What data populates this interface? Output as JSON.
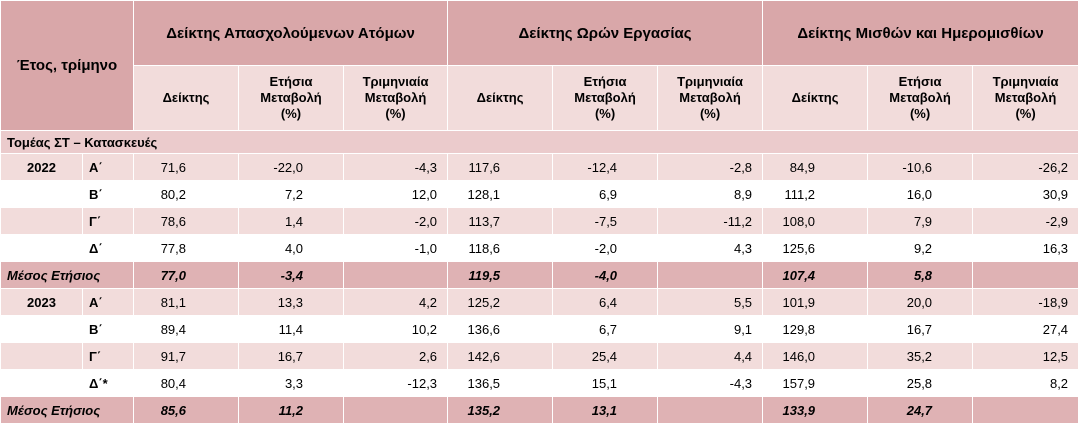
{
  "header": {
    "year_quarter": "Έτος, τρίμηνο",
    "groups": [
      "Δείκτης Απασχολούμενων Ατόμων",
      "Δείκτης Ωρών Εργασίας",
      "Δείκτης Μισθών και Ημερομισθίων"
    ],
    "subheaders": [
      "Δείκτης",
      "Ετήσια Μεταβολή (%)",
      "Τριμηνιαία Μεταβολή (%)"
    ]
  },
  "sector": "Τομέας ΣΤ – Κατασκευές",
  "blocks": [
    {
      "year": "2022",
      "rows": [
        {
          "quarter": "Α΄",
          "values": [
            [
              "71,6",
              "-22,0",
              "-4,3"
            ],
            [
              "117,6",
              "-12,4",
              "-2,8"
            ],
            [
              "84,9",
              "-10,6",
              "-26,2"
            ]
          ]
        },
        {
          "quarter": "Β΄",
          "values": [
            [
              "80,2",
              "7,2",
              "12,0"
            ],
            [
              "128,1",
              "6,9",
              "8,9"
            ],
            [
              "111,2",
              "16,0",
              "30,9"
            ]
          ]
        },
        {
          "quarter": "Γ΄",
          "values": [
            [
              "78,6",
              "1,4",
              "-2,0"
            ],
            [
              "113,7",
              "-7,5",
              "-11,2"
            ],
            [
              "108,0",
              "7,9",
              "-2,9"
            ]
          ]
        },
        {
          "quarter": "Δ΄",
          "values": [
            [
              "77,8",
              "4,0",
              "-1,0"
            ],
            [
              "118,6",
              "-2,0",
              "4,3"
            ],
            [
              "125,6",
              "9,2",
              "16,3"
            ]
          ]
        }
      ],
      "mean": {
        "label": "Μέσος Ετήσιος",
        "values": [
          [
            "77,0",
            "-3,4"
          ],
          [
            "119,5",
            "-4,0"
          ],
          [
            "107,4",
            "5,8"
          ]
        ]
      }
    },
    {
      "year": "2023",
      "rows": [
        {
          "quarter": "Α΄",
          "values": [
            [
              "81,1",
              "13,3",
              "4,2"
            ],
            [
              "125,2",
              "6,4",
              "5,5"
            ],
            [
              "101,9",
              "20,0",
              "-18,9"
            ]
          ]
        },
        {
          "quarter": "Β΄",
          "values": [
            [
              "89,4",
              "11,4",
              "10,2"
            ],
            [
              "136,6",
              "6,7",
              "9,1"
            ],
            [
              "129,8",
              "16,7",
              "27,4"
            ]
          ]
        },
        {
          "quarter": "Γ΄",
          "values": [
            [
              "91,7",
              "16,7",
              "2,6"
            ],
            [
              "142,6",
              "25,4",
              "4,4"
            ],
            [
              "146,0",
              "35,2",
              "12,5"
            ]
          ]
        },
        {
          "quarter": "Δ΄*",
          "values": [
            [
              "80,4",
              "3,3",
              "-12,3"
            ],
            [
              "136,5",
              "15,1",
              "-4,3"
            ],
            [
              "157,9",
              "25,8",
              "8,2"
            ]
          ]
        }
      ],
      "mean": {
        "label": "Μέσος Ετήσιος",
        "values": [
          [
            "85,6",
            "11,2"
          ],
          [
            "135,2",
            "13,1"
          ],
          [
            "133,9",
            "24,7"
          ]
        ]
      }
    }
  ]
}
